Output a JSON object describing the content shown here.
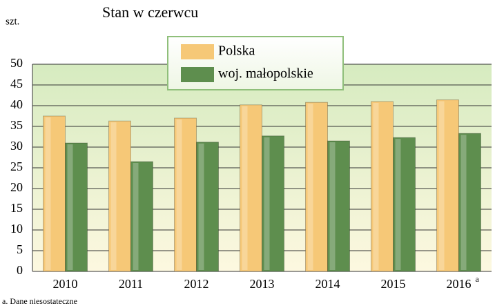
{
  "chart_data": {
    "type": "bar",
    "title": "Stan w czerwcu",
    "y_label": "szt.",
    "categories": [
      "2010",
      "2011",
      "2012",
      "2013",
      "2014",
      "2015",
      "2016"
    ],
    "footnote_marker": "a",
    "footnote": "a. Dane niesostateczne",
    "series": [
      {
        "name": "Polska",
        "color": "#f6c877",
        "values": [
          37.5,
          36.3,
          37,
          40.2,
          40.8,
          41,
          41.4
        ]
      },
      {
        "name": "woj. małopolskie",
        "color": "#5e8e4e",
        "values": [
          31,
          26.5,
          31.2,
          32.7,
          31.5,
          32.3,
          33.3
        ]
      }
    ],
    "ylim": [
      0,
      50
    ],
    "yticks": [
      0,
      5,
      10,
      15,
      20,
      25,
      30,
      35,
      40,
      45,
      50
    ],
    "grid": true
  }
}
